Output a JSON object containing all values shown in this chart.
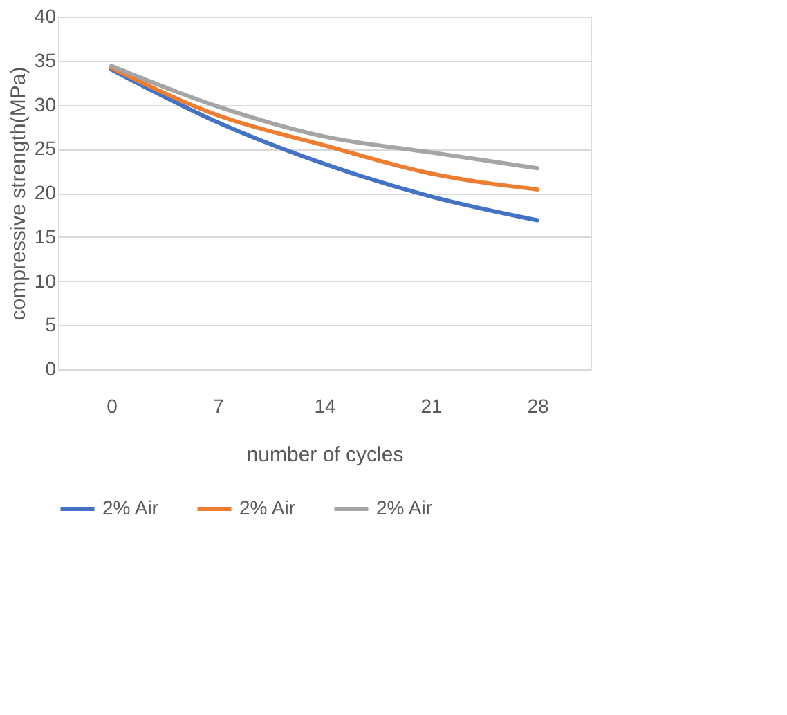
{
  "chart_data": {
    "type": "line",
    "xlabel": "number of cycles",
    "ylabel": "compressive strength(MPa)",
    "categories": [
      "0",
      "7",
      "14",
      "21",
      "28"
    ],
    "series": [
      {
        "name": "2% Air",
        "color": "#4472c4",
        "values": [
          34.0,
          28.0,
          23.3,
          19.6,
          16.9
        ]
      },
      {
        "name": "2% Air",
        "color": "#ed7d31",
        "values": [
          34.2,
          28.8,
          25.4,
          22.2,
          20.4
        ]
      },
      {
        "name": "2% Air",
        "color": "#a5a5a5",
        "values": [
          34.4,
          29.8,
          26.4,
          24.6,
          22.8
        ]
      }
    ],
    "ylim": [
      0,
      40
    ],
    "yticks": [
      0,
      5,
      10,
      15,
      20,
      25,
      30,
      35,
      40
    ],
    "grid": "y",
    "legend": "bottom",
    "marker": "none",
    "line_style": "solid"
  }
}
